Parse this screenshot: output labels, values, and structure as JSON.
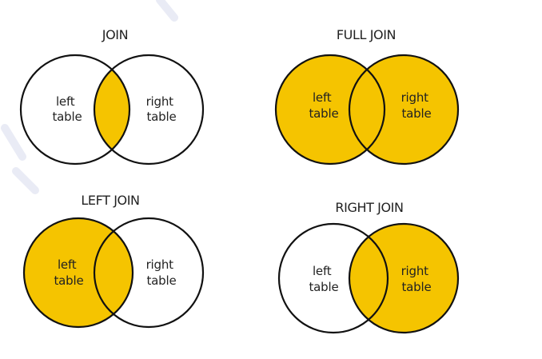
{
  "colors": {
    "fill": "#f5c400",
    "stroke": "#111111",
    "text": "#222222",
    "background": "#ffffff"
  },
  "diagrams": [
    {
      "id": "join",
      "title": "JOIN",
      "left_label": [
        "left",
        "table"
      ],
      "right_label": [
        "right",
        "table"
      ],
      "highlight": "intersection"
    },
    {
      "id": "full-join",
      "title": "FULL JOIN",
      "left_label": [
        "left",
        "table"
      ],
      "right_label": [
        "right",
        "table"
      ],
      "highlight": "both"
    },
    {
      "id": "left-join",
      "title": "LEFT JOIN",
      "left_label": [
        "left",
        "table"
      ],
      "right_label": [
        "right",
        "table"
      ],
      "highlight": "left"
    },
    {
      "id": "right-join",
      "title": "RIGHT JOIN",
      "left_label": [
        "left",
        "table"
      ],
      "right_label": [
        "right",
        "table"
      ],
      "highlight": "right"
    }
  ]
}
